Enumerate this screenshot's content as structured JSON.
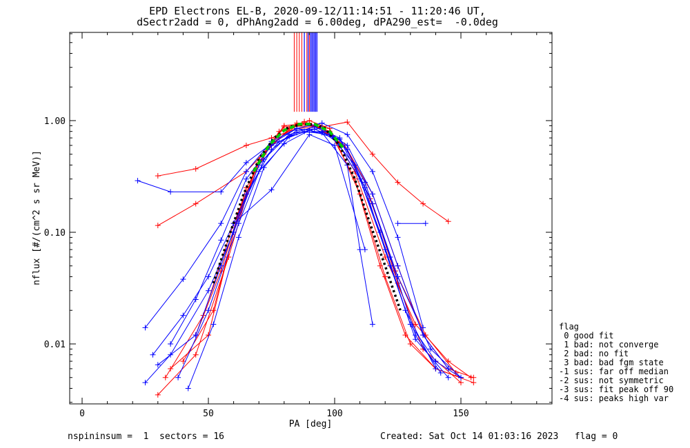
{
  "header": {
    "title_line1": "EPD Electrons EL-B, 2020-09-12/11:14:51 - 11:20:46 UT,",
    "title_line2": "dSectr2add = 0, dPhAng2add = 6.00deg, dPA290_est=  -0.0deg"
  },
  "footer": {
    "left": "nspininsum =  1  sectors = 16",
    "right": "Created: Sat Oct 14 01:03:16 2023   flag = 0"
  },
  "legend": {
    "title": "flag",
    "items": [
      " 0 good fit",
      " 1 bad: not converge",
      " 2 bad: no fit",
      " 3 bad: bad fgm state",
      "-1 sus: far off median",
      "-2 sus: not symmetric",
      "-3 sus: fit peak off 90",
      "-4 sus: peaks high var"
    ]
  },
  "colors": {
    "red": "#ff0000",
    "blue": "#0000ff",
    "black": "#000000",
    "green": "#00cc00"
  },
  "chart_data": {
    "type": "line",
    "xlabel": "PA [deg]",
    "ylabel": "nflux [#/(cm^2 s sr MeV)]",
    "xlim": [
      -5,
      185
    ],
    "ylim": [
      0.003,
      5.5
    ],
    "yscale": "log",
    "xticks": [
      "0",
      "50",
      "100",
      "150"
    ],
    "yticks": [
      "0.01",
      "0.10",
      "1.00"
    ],
    "series": [
      {
        "color": "red",
        "x": [
          30,
          45,
          65,
          75,
          85,
          95,
          105,
          115,
          125,
          135,
          145,
          155
        ],
        "y": [
          0.115,
          0.18,
          0.35,
          0.6,
          0.95,
          0.85,
          0.55,
          0.22,
          0.05,
          0.012,
          0.006,
          0.005
        ]
      },
      {
        "color": "red",
        "x": [
          30,
          45,
          65,
          75,
          85,
          95,
          105,
          115,
          125,
          135,
          145
        ],
        "y": [
          0.32,
          0.37,
          0.6,
          0.7,
          0.85,
          0.88,
          0.97,
          0.5,
          0.28,
          0.18,
          0.125
        ]
      },
      {
        "color": "red",
        "x": [
          35,
          50,
          60,
          70,
          80,
          90,
          100,
          110,
          120,
          130,
          140,
          155
        ],
        "y": [
          0.006,
          0.012,
          0.1,
          0.45,
          0.9,
          0.95,
          0.7,
          0.22,
          0.04,
          0.01,
          0.006,
          0.0045
        ]
      },
      {
        "color": "red",
        "x": [
          30,
          45,
          58,
          68,
          78,
          88,
          98,
          108,
          118,
          128,
          140,
          150
        ],
        "y": [
          0.0035,
          0.008,
          0.06,
          0.35,
          0.8,
          0.98,
          0.8,
          0.3,
          0.05,
          0.012,
          0.006,
          0.005
        ]
      },
      {
        "color": "red",
        "x": [
          40,
          52,
          62,
          72,
          82,
          90,
          98,
          108,
          120,
          132,
          145,
          154
        ],
        "y": [
          0.007,
          0.02,
          0.15,
          0.5,
          0.85,
          1.0,
          0.85,
          0.35,
          0.06,
          0.015,
          0.007,
          0.005
        ]
      },
      {
        "color": "red",
        "x": [
          33,
          48,
          60,
          70,
          80,
          92,
          104,
          114,
          124,
          136,
          148
        ],
        "y": [
          0.005,
          0.018,
          0.12,
          0.42,
          0.88,
          0.9,
          0.6,
          0.2,
          0.045,
          0.012,
          0.0055
        ]
      },
      {
        "color": "red",
        "x": [
          45,
          55,
          65,
          75,
          85,
          95,
          105,
          115,
          125,
          135,
          150
        ],
        "y": [
          0.012,
          0.045,
          0.25,
          0.62,
          0.9,
          0.88,
          0.55,
          0.18,
          0.035,
          0.009,
          0.0045
        ]
      },
      {
        "color": "blue",
        "x": [
          22,
          35,
          55,
          65,
          75,
          85,
          95,
          105,
          115,
          125,
          135
        ],
        "y": [
          0.29,
          0.23,
          0.23,
          0.42,
          0.62,
          0.85,
          0.95,
          0.75,
          0.35,
          0.09,
          0.014
        ]
      },
      {
        "color": "blue",
        "x": [
          25,
          40,
          55,
          65,
          75,
          85,
          95,
          105,
          110,
          115
        ],
        "y": [
          0.014,
          0.038,
          0.12,
          0.35,
          0.65,
          0.85,
          0.78,
          0.4,
          0.07,
          0.015
        ]
      },
      {
        "color": "blue",
        "x": [
          25,
          35,
          50,
          60,
          70,
          78,
          88,
          98,
          108,
          118,
          128,
          140
        ],
        "y": [
          0.0045,
          0.008,
          0.03,
          0.1,
          0.4,
          0.65,
          0.8,
          0.75,
          0.4,
          0.1,
          0.02,
          0.006
        ]
      },
      {
        "color": "blue",
        "x": [
          30,
          45,
          55,
          65,
          75,
          85,
          95,
          105,
          115,
          125,
          135,
          145
        ],
        "y": [
          0.0065,
          0.012,
          0.05,
          0.22,
          0.55,
          0.82,
          0.85,
          0.6,
          0.22,
          0.05,
          0.012,
          0.006
        ]
      },
      {
        "color": "blue",
        "x": [
          38,
          50,
          62,
          72,
          82,
          92,
          102,
          112,
          122,
          132,
          142
        ],
        "y": [
          0.005,
          0.02,
          0.12,
          0.45,
          0.75,
          0.88,
          0.7,
          0.28,
          0.06,
          0.012,
          0.0055
        ]
      },
      {
        "color": "blue",
        "x": [
          35,
          45,
          55,
          65,
          75,
          85,
          95,
          105,
          115,
          125,
          138,
          150
        ],
        "y": [
          0.01,
          0.025,
          0.085,
          0.3,
          0.6,
          0.78,
          0.8,
          0.55,
          0.18,
          0.04,
          0.009,
          0.005
        ]
      },
      {
        "color": "blue",
        "x": [
          42,
          52,
          62,
          72,
          82,
          92,
          102,
          112,
          122,
          132,
          145
        ],
        "y": [
          0.004,
          0.015,
          0.09,
          0.38,
          0.72,
          0.84,
          0.68,
          0.25,
          0.05,
          0.011,
          0.005
        ]
      },
      {
        "color": "blue",
        "x": [
          28,
          40,
          50,
          60,
          70,
          80,
          90,
          100,
          110,
          120,
          130,
          140,
          150
        ],
        "y": [
          0.008,
          0.018,
          0.04,
          0.12,
          0.35,
          0.62,
          0.82,
          0.7,
          0.3,
          0.07,
          0.015,
          0.007,
          0.005
        ]
      },
      {
        "color": "blue",
        "x": [
          60,
          75,
          90,
          100,
          112
        ],
        "y": [
          0.12,
          0.24,
          0.75,
          0.6,
          0.07
        ]
      },
      {
        "color": "blue",
        "x": [
          125,
          136
        ],
        "y": [
          0.12,
          0.12
        ]
      },
      {
        "color": "black",
        "style": "dotted",
        "x": [
          52,
          58,
          64,
          70,
          76,
          82,
          88,
          92,
          96,
          102,
          108,
          114,
          120,
          126
        ],
        "y": [
          0.035,
          0.09,
          0.22,
          0.45,
          0.7,
          0.88,
          0.93,
          0.92,
          0.86,
          0.6,
          0.3,
          0.12,
          0.05,
          0.02
        ]
      },
      {
        "color": "green",
        "style": "dashed",
        "x": [
          68,
          74,
          80,
          86,
          92,
          98,
          104
        ],
        "y": [
          0.35,
          0.6,
          0.82,
          0.93,
          0.93,
          0.8,
          0.55
        ]
      }
    ],
    "vertical_lines": {
      "red_x": [
        84,
        85,
        86,
        87,
        89,
        90
      ],
      "blue_x": [
        88,
        89.5,
        90.5,
        91,
        91.5,
        92,
        92.5,
        93
      ]
    }
  }
}
